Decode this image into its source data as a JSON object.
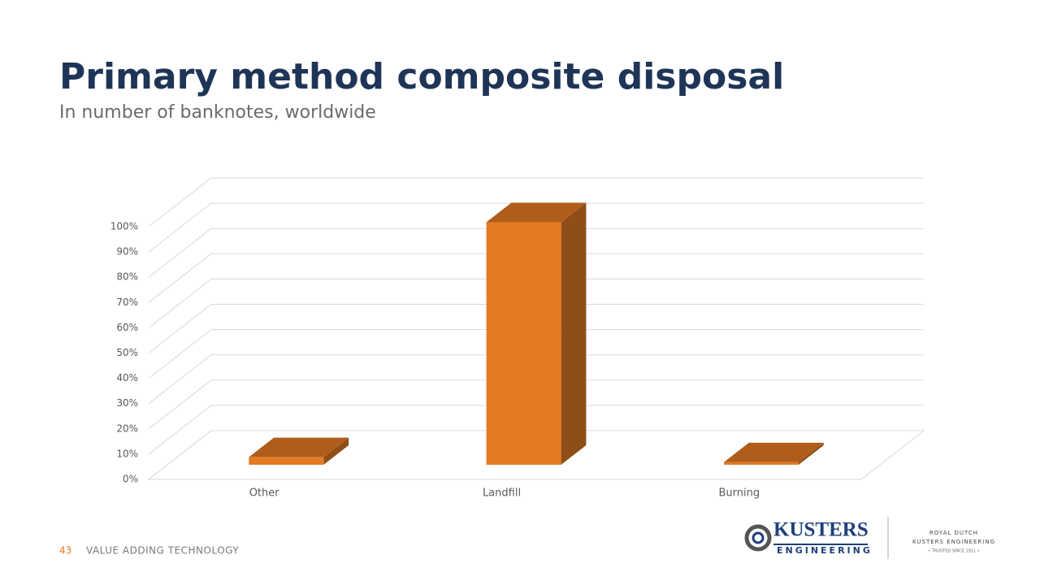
{
  "chart_data": {
    "type": "bar3d",
    "title": "Primary method composite disposal",
    "subtitle": "In number of banknotes, worldwide",
    "categories": [
      "Other",
      "Landfill",
      "Burning"
    ],
    "values": [
      3,
      96,
      1
    ],
    "color": "#e47a23",
    "top_color": "#b05d1c",
    "side_color": "#8f4e17",
    "ylim": [
      0,
      100
    ],
    "yticks": [
      {
        "value": 0,
        "label": "0%"
      },
      {
        "value": 10,
        "label": "10%"
      },
      {
        "value": 20,
        "label": "20%"
      },
      {
        "value": 30,
        "label": "30%"
      },
      {
        "value": 40,
        "label": "40%"
      },
      {
        "value": 50,
        "label": "50%"
      },
      {
        "value": 60,
        "label": "60%"
      },
      {
        "value": 70,
        "label": "70%"
      },
      {
        "value": 80,
        "label": "80%"
      },
      {
        "value": 90,
        "label": "90%"
      },
      {
        "value": 100,
        "label": "100%"
      }
    ],
    "grid": true
  },
  "footer": {
    "page": "43",
    "text": "VALUE ADDING TECHNOLOGY"
  },
  "logo": {
    "name": "KUSTERS",
    "sub": "ENGINEERING",
    "royal": "ROYAL DUTCH",
    "company": "KUSTERS ENGINEERING",
    "trusted": "• TRUSTED SINCE 1911 •"
  }
}
